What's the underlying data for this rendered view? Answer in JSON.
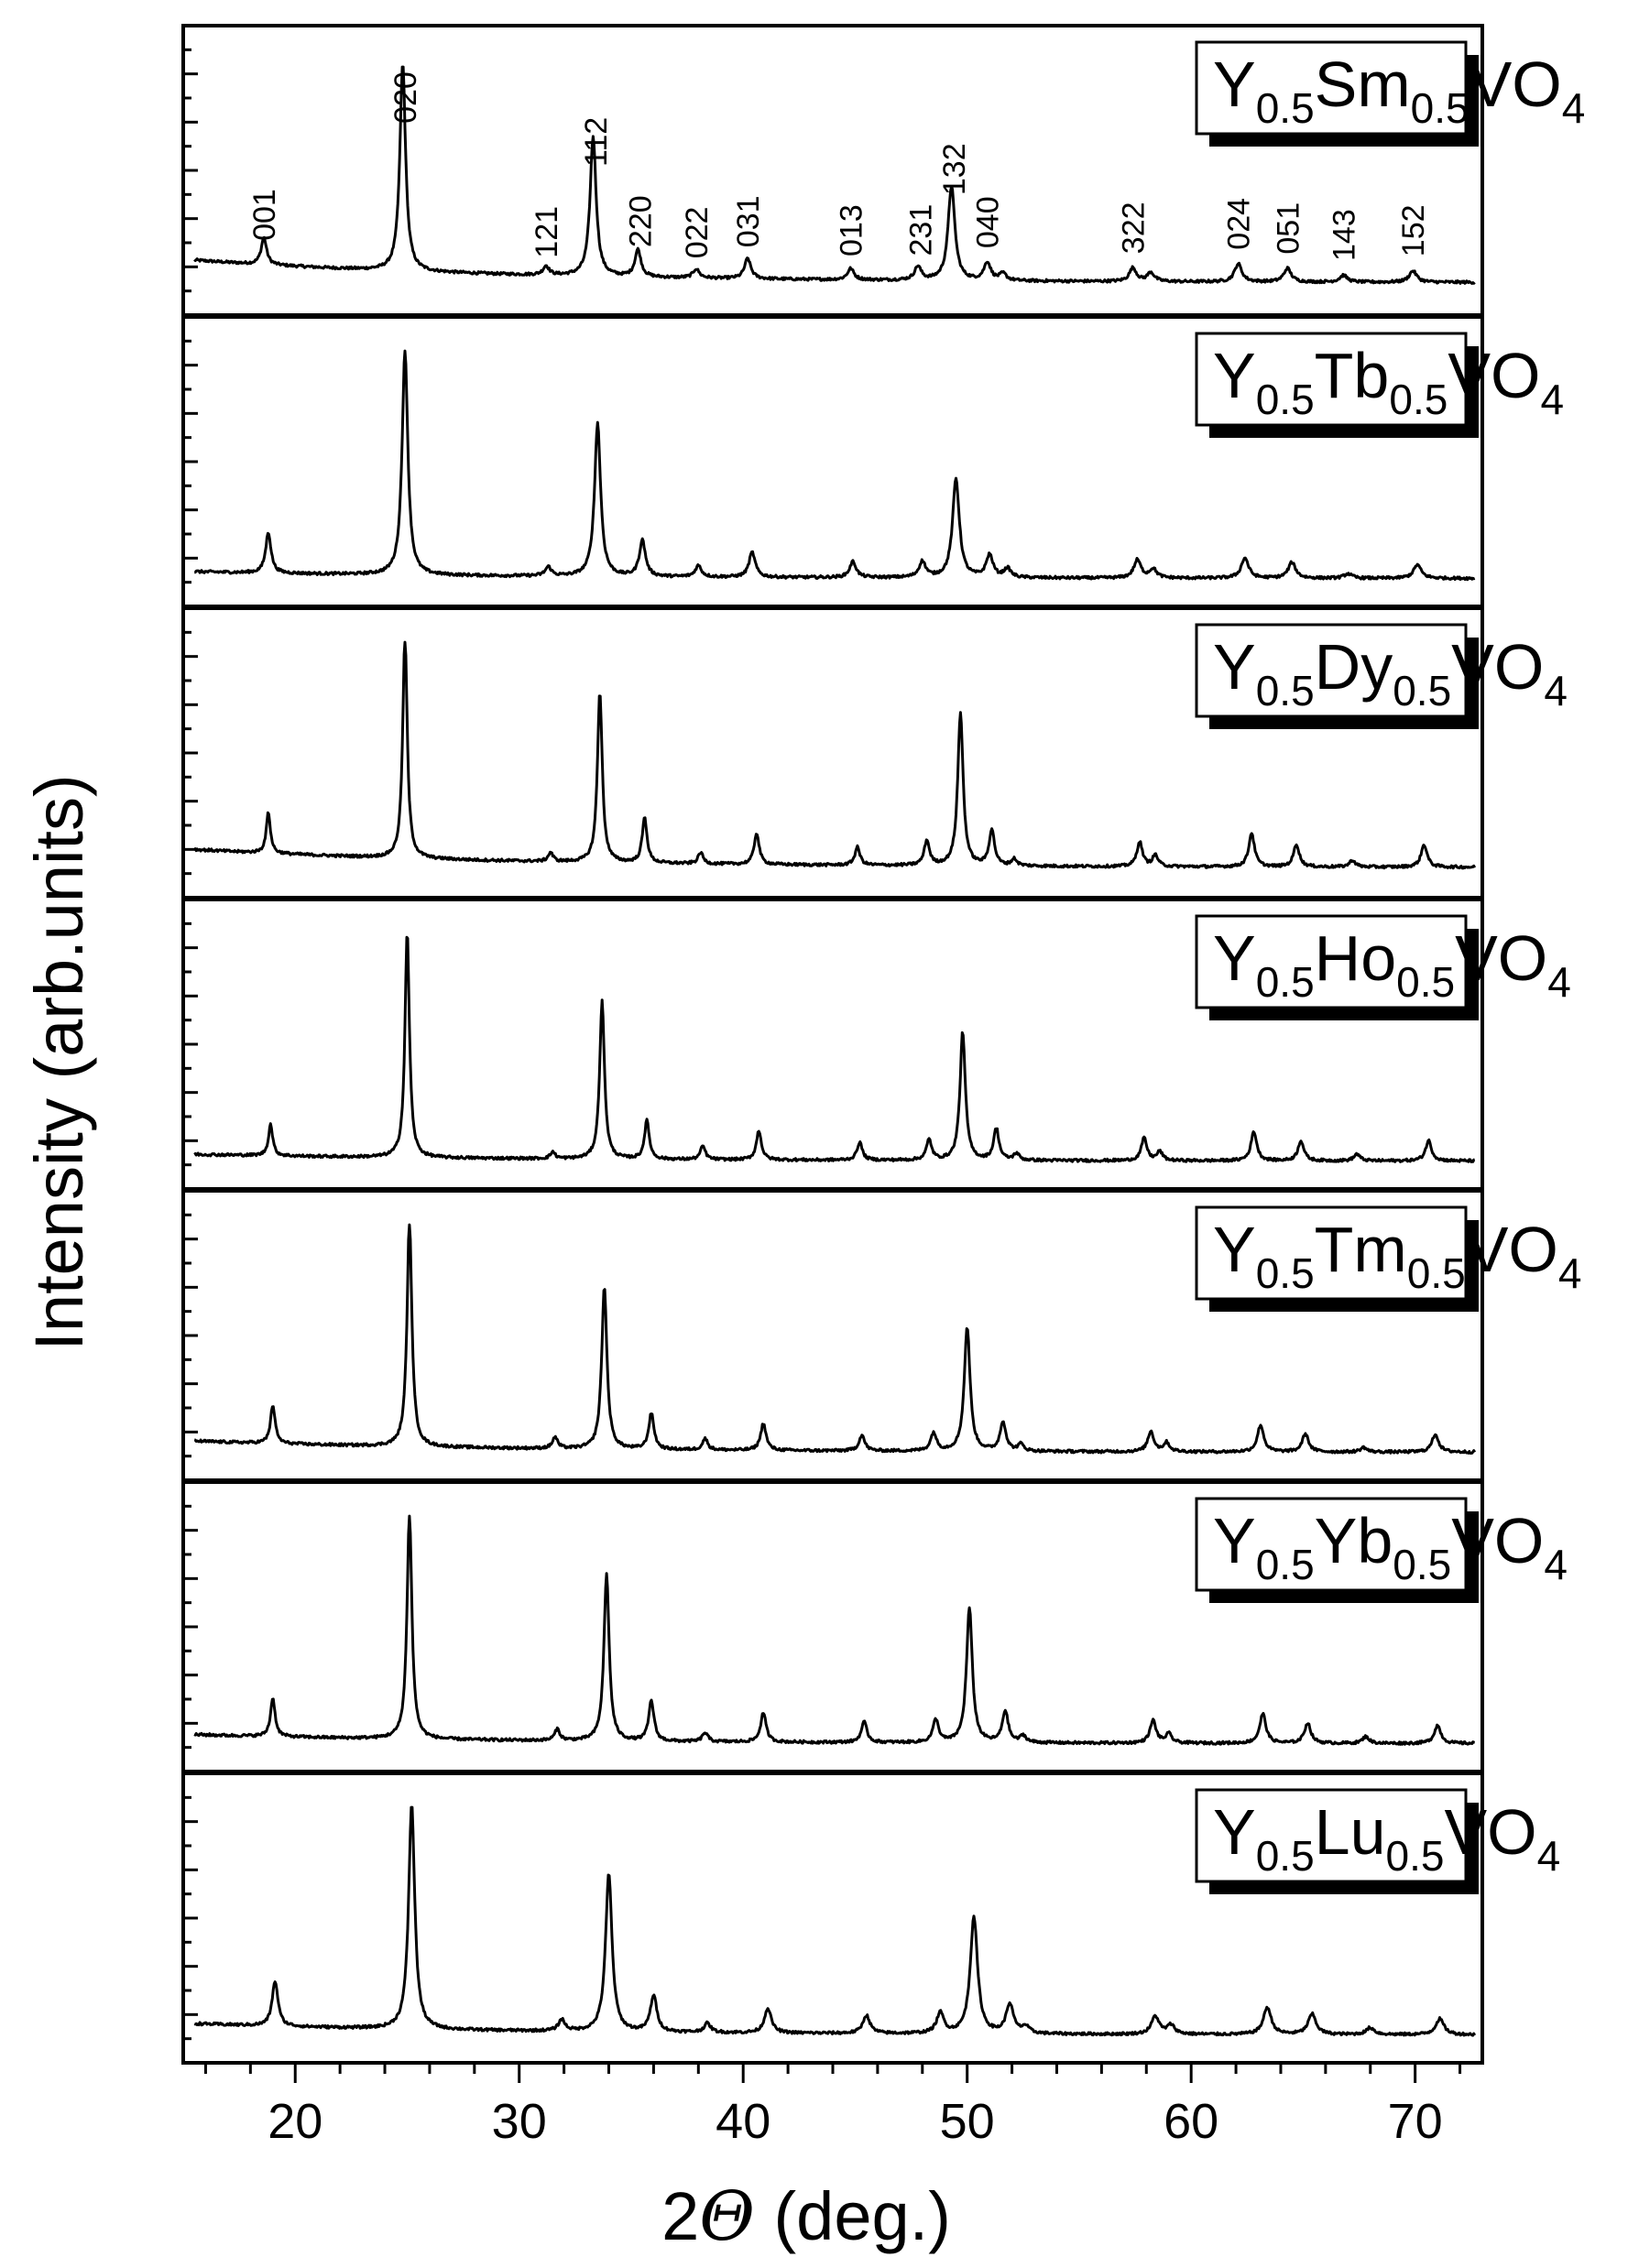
{
  "chart_data": {
    "type": "line",
    "xlabel_prefix": "2",
    "xlabel_symbol": "Θ",
    "xlabel_suffix": " (deg.)",
    "ylabel": "Intensity (arb.units)",
    "xlim": [
      15,
      73
    ],
    "x_ticks": [
      20,
      30,
      40,
      50,
      60,
      70
    ],
    "y_ticks": "none",
    "grid": false,
    "legend": "per-panel label box, top-right",
    "colors": {
      "line": "#000000",
      "background": "#ffffff"
    },
    "miller_indices": [
      {
        "label": "001",
        "x": 18.6
      },
      {
        "label": "020",
        "x": 24.9
      },
      {
        "label": "121",
        "x": 31.2
      },
      {
        "label": "112",
        "x": 33.4
      },
      {
        "label": "220",
        "x": 35.4
      },
      {
        "label": "022",
        "x": 37.9
      },
      {
        "label": "031",
        "x": 40.2
      },
      {
        "label": "013",
        "x": 44.8
      },
      {
        "label": "231",
        "x": 47.9
      },
      {
        "label": "132",
        "x": 49.4
      },
      {
        "label": "040",
        "x": 50.9
      },
      {
        "label": "322",
        "x": 57.4
      },
      {
        "label": "024",
        "x": 62.1
      },
      {
        "label": "051",
        "x": 64.3
      },
      {
        "label": "143",
        "x": 66.8
      },
      {
        "label": "152",
        "x": 69.9
      }
    ],
    "series": [
      {
        "name_prefix": "Y",
        "name_sub1": "0.5",
        "name_mid": "Sm",
        "name_sub2": "0.5",
        "name_tail": "VO",
        "name_sub3": "4",
        "background": 0.1,
        "tail": 0.03,
        "width": 0.14,
        "peaks": [
          [
            18.6,
            0.12
          ],
          [
            24.8,
            0.92
          ],
          [
            31.2,
            0.04
          ],
          [
            33.3,
            0.62
          ],
          [
            35.3,
            0.12
          ],
          [
            37.9,
            0.04
          ],
          [
            40.2,
            0.09
          ],
          [
            44.8,
            0.05
          ],
          [
            47.8,
            0.06
          ],
          [
            49.3,
            0.42
          ],
          [
            50.9,
            0.08
          ],
          [
            51.6,
            0.03
          ],
          [
            57.4,
            0.06
          ],
          [
            58.2,
            0.04
          ],
          [
            62.1,
            0.08
          ],
          [
            64.3,
            0.06
          ],
          [
            66.8,
            0.03
          ],
          [
            69.9,
            0.05
          ]
        ]
      },
      {
        "name_prefix": "Y",
        "name_sub1": "0.5",
        "name_mid": "Tb",
        "name_sub2": "0.5",
        "name_tail": "VO",
        "name_sub3": "4",
        "background": 0.03,
        "tail": 0.01,
        "width": 0.14,
        "peaks": [
          [
            18.8,
            0.18
          ],
          [
            24.9,
            1.0
          ],
          [
            31.3,
            0.04
          ],
          [
            33.5,
            0.68
          ],
          [
            35.5,
            0.16
          ],
          [
            38.0,
            0.05
          ],
          [
            40.4,
            0.11
          ],
          [
            44.9,
            0.07
          ],
          [
            48.0,
            0.07
          ],
          [
            49.5,
            0.44
          ],
          [
            51.0,
            0.1
          ],
          [
            51.8,
            0.04
          ],
          [
            57.6,
            0.08
          ],
          [
            58.3,
            0.04
          ],
          [
            62.4,
            0.09
          ],
          [
            64.5,
            0.07
          ],
          [
            67.0,
            0.02
          ],
          [
            70.1,
            0.06
          ]
        ]
      },
      {
        "name_prefix": "Y",
        "name_sub1": "0.5",
        "name_mid": "Dy",
        "name_sub2": "0.5",
        "name_tail": "VO",
        "name_sub3": "4",
        "background": 0.08,
        "tail": 0.02,
        "width": 0.11,
        "peaks": [
          [
            18.8,
            0.18
          ],
          [
            24.9,
            1.0
          ],
          [
            31.4,
            0.04
          ],
          [
            33.6,
            0.76
          ],
          [
            35.6,
            0.2
          ],
          [
            38.1,
            0.05
          ],
          [
            40.6,
            0.14
          ],
          [
            45.1,
            0.08
          ],
          [
            48.2,
            0.11
          ],
          [
            49.7,
            0.68
          ],
          [
            51.1,
            0.16
          ],
          [
            52.1,
            0.03
          ],
          [
            57.7,
            0.11
          ],
          [
            58.4,
            0.05
          ],
          [
            62.7,
            0.15
          ],
          [
            64.7,
            0.1
          ],
          [
            67.2,
            0.03
          ],
          [
            70.4,
            0.1
          ]
        ]
      },
      {
        "name_prefix": "Y",
        "name_sub1": "0.5",
        "name_mid": "Ho",
        "name_sub2": "0.5",
        "name_tail": "VO",
        "name_sub3": "4",
        "background": 0.03,
        "tail": 0.01,
        "width": 0.11,
        "peaks": [
          [
            18.9,
            0.14
          ],
          [
            25.0,
            1.0
          ],
          [
            31.5,
            0.03
          ],
          [
            33.7,
            0.7
          ],
          [
            35.7,
            0.17
          ],
          [
            38.2,
            0.06
          ],
          [
            40.7,
            0.13
          ],
          [
            45.2,
            0.08
          ],
          [
            48.3,
            0.09
          ],
          [
            49.8,
            0.57
          ],
          [
            51.3,
            0.14
          ],
          [
            52.2,
            0.03
          ],
          [
            57.9,
            0.1
          ],
          [
            58.6,
            0.04
          ],
          [
            62.8,
            0.13
          ],
          [
            64.9,
            0.09
          ],
          [
            67.4,
            0.03
          ],
          [
            70.6,
            0.09
          ]
        ]
      },
      {
        "name_prefix": "Y",
        "name_sub1": "0.5",
        "name_mid": "Tm",
        "name_sub2": "0.5",
        "name_tail": "VO",
        "name_sub3": "4",
        "background": 0.05,
        "tail": 0.01,
        "width": 0.12,
        "peaks": [
          [
            19.0,
            0.17
          ],
          [
            25.1,
            1.0
          ],
          [
            31.6,
            0.05
          ],
          [
            33.8,
            0.72
          ],
          [
            35.9,
            0.16
          ],
          [
            38.3,
            0.05
          ],
          [
            40.9,
            0.12
          ],
          [
            45.3,
            0.07
          ],
          [
            48.5,
            0.08
          ],
          [
            50.0,
            0.55
          ],
          [
            51.6,
            0.13
          ],
          [
            52.4,
            0.03
          ],
          [
            58.2,
            0.09
          ],
          [
            58.9,
            0.04
          ],
          [
            63.1,
            0.12
          ],
          [
            65.1,
            0.08
          ],
          [
            67.7,
            0.02
          ],
          [
            70.9,
            0.08
          ]
        ]
      },
      {
        "name_prefix": "Y",
        "name_sub1": "0.5",
        "name_mid": "Yb",
        "name_sub2": "0.5",
        "name_tail": "VO",
        "name_sub3": "4",
        "background": 0.04,
        "tail": 0.01,
        "width": 0.12,
        "peaks": [
          [
            19.0,
            0.17
          ],
          [
            25.1,
            1.0
          ],
          [
            31.7,
            0.05
          ],
          [
            33.9,
            0.74
          ],
          [
            35.9,
            0.18
          ],
          [
            38.3,
            0.04
          ],
          [
            40.9,
            0.13
          ],
          [
            45.4,
            0.09
          ],
          [
            48.6,
            0.1
          ],
          [
            50.1,
            0.6
          ],
          [
            51.7,
            0.14
          ],
          [
            52.5,
            0.03
          ],
          [
            58.3,
            0.1
          ],
          [
            59.0,
            0.04
          ],
          [
            63.2,
            0.13
          ],
          [
            65.2,
            0.09
          ],
          [
            67.8,
            0.03
          ],
          [
            71.0,
            0.08
          ]
        ]
      },
      {
        "name_prefix": "Y",
        "name_sub1": "0.5",
        "name_mid": "Lu",
        "name_sub2": "0.5",
        "name_tail": "VO",
        "name_sub3": "4",
        "background": 0.05,
        "tail": 0.01,
        "width": 0.15,
        "peaks": [
          [
            19.1,
            0.2
          ],
          [
            25.2,
            1.0
          ],
          [
            31.9,
            0.05
          ],
          [
            34.0,
            0.7
          ],
          [
            36.0,
            0.16
          ],
          [
            38.4,
            0.04
          ],
          [
            41.1,
            0.11
          ],
          [
            45.5,
            0.08
          ],
          [
            48.8,
            0.09
          ],
          [
            50.3,
            0.52
          ],
          [
            51.9,
            0.13
          ],
          [
            52.6,
            0.03
          ],
          [
            58.4,
            0.08
          ],
          [
            59.1,
            0.04
          ],
          [
            63.4,
            0.12
          ],
          [
            65.4,
            0.09
          ],
          [
            68.0,
            0.03
          ],
          [
            71.1,
            0.07
          ]
        ]
      }
    ]
  }
}
